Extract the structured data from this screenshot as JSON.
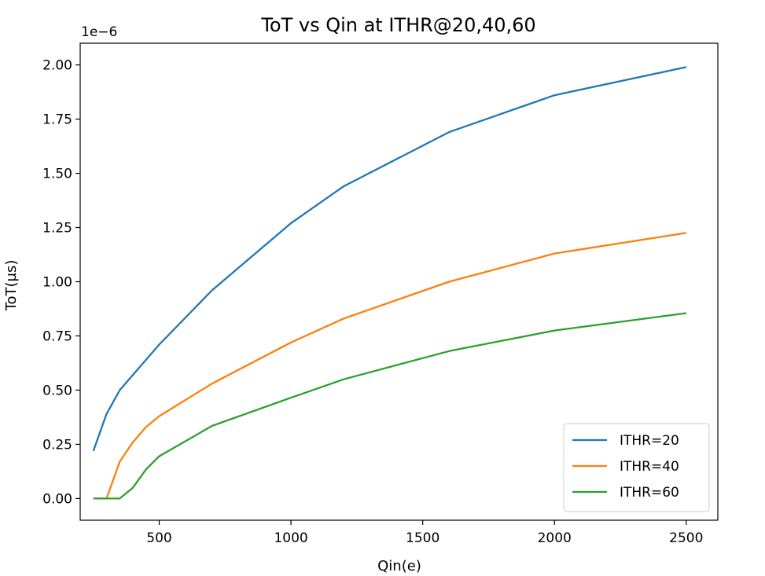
{
  "chart_data": {
    "type": "line",
    "title": "ToT vs Qin at ITHR@20,40,60",
    "xlabel": "Qin(e)",
    "ylabel": "ToT(µs)",
    "offset_text": "1e−6",
    "xlim": [
      200,
      2620
    ],
    "ylim": [
      -0.1,
      2.1
    ],
    "x_ticks": [
      500,
      1000,
      1500,
      2000,
      2500
    ],
    "x_tick_labels": [
      "500",
      "1000",
      "1500",
      "2000",
      "2500"
    ],
    "y_ticks": [
      0.0,
      0.25,
      0.5,
      0.75,
      1.0,
      1.25,
      1.5,
      1.75,
      2.0
    ],
    "y_tick_labels": [
      "0.00",
      "0.25",
      "0.50",
      "0.75",
      "1.00",
      "1.25",
      "1.50",
      "1.75",
      "2.00"
    ],
    "grid": false,
    "legend_position": "lower-right",
    "series": [
      {
        "name": "ITHR=20",
        "color": "#1f77b4",
        "x": [
          250,
          300,
          350,
          400,
          450,
          500,
          700,
          1000,
          1200,
          1600,
          2000,
          2500
        ],
        "y": [
          0.22,
          0.39,
          0.5,
          0.57,
          0.64,
          0.71,
          0.96,
          1.27,
          1.44,
          1.69,
          1.86,
          1.99
        ]
      },
      {
        "name": "ITHR=40",
        "color": "#ff7f0e",
        "x": [
          250,
          300,
          350,
          400,
          450,
          500,
          700,
          1000,
          1200,
          1600,
          2000,
          2500
        ],
        "y": [
          0.0,
          0.0,
          0.17,
          0.26,
          0.33,
          0.38,
          0.53,
          0.72,
          0.83,
          1.0,
          1.13,
          1.225
        ]
      },
      {
        "name": "ITHR=60",
        "color": "#2ca02c",
        "x": [
          250,
          300,
          350,
          400,
          450,
          500,
          700,
          1000,
          1200,
          1600,
          2000,
          2500
        ],
        "y": [
          0.0,
          0.0,
          0.0,
          0.05,
          0.135,
          0.195,
          0.335,
          0.465,
          0.55,
          0.68,
          0.775,
          0.855
        ]
      }
    ]
  }
}
